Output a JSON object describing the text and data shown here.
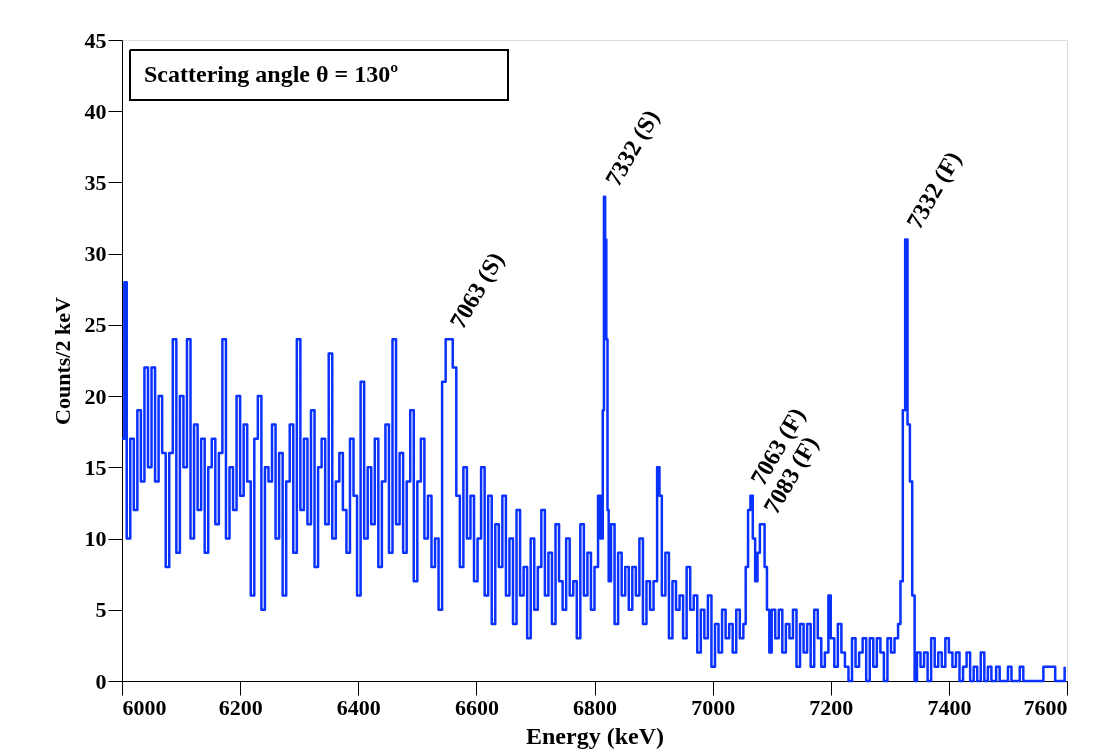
{
  "chart_data": {
    "type": "step",
    "xlabel": "Energy (keV)",
    "ylabel": "Counts/2 keV",
    "xlim": [
      6000,
      7600
    ],
    "ylim": [
      0,
      45
    ],
    "xticks": [
      6000,
      6200,
      6400,
      6600,
      6800,
      7000,
      7200,
      7400,
      7600
    ],
    "yticks": [
      0,
      5,
      10,
      15,
      20,
      25,
      30,
      35,
      40,
      45
    ],
    "grid": false,
    "legend": false,
    "annotations": [
      "Scattering angle θ = 130º",
      {
        "text": "7063 (S)",
        "x": 6555,
        "y": 24
      },
      {
        "text": "7332 (S)",
        "x": 6818,
        "y": 34
      },
      {
        "text": "7063 (F)",
        "x": 7064,
        "y": 13
      },
      {
        "text": "7083 (F)",
        "x": 7086,
        "y": 11
      },
      {
        "text": "7332 (F)",
        "x": 7328,
        "y": 31
      }
    ],
    "series": [
      {
        "color": "#0a32ff",
        "x": [
          6000,
          6004,
          6008,
          6014,
          6020,
          6026,
          6032,
          6038,
          6044,
          6050,
          6056,
          6062,
          6068,
          6074,
          6080,
          6086,
          6092,
          6098,
          6104,
          6110,
          6116,
          6122,
          6128,
          6134,
          6140,
          6146,
          6152,
          6158,
          6164,
          6170,
          6176,
          6182,
          6188,
          6194,
          6200,
          6206,
          6212,
          6218,
          6224,
          6230,
          6236,
          6242,
          6248,
          6254,
          6260,
          6266,
          6272,
          6278,
          6284,
          6290,
          6296,
          6302,
          6308,
          6314,
          6320,
          6326,
          6332,
          6338,
          6344,
          6350,
          6356,
          6362,
          6368,
          6374,
          6380,
          6386,
          6392,
          6398,
          6404,
          6410,
          6416,
          6422,
          6428,
          6434,
          6440,
          6446,
          6452,
          6458,
          6464,
          6470,
          6476,
          6482,
          6488,
          6494,
          6500,
          6506,
          6512,
          6518,
          6524,
          6530,
          6536,
          6542,
          6548,
          6554,
          6560,
          6566,
          6572,
          6578,
          6584,
          6590,
          6596,
          6602,
          6608,
          6614,
          6620,
          6626,
          6632,
          6638,
          6644,
          6650,
          6656,
          6662,
          6668,
          6674,
          6680,
          6686,
          6692,
          6698,
          6704,
          6710,
          6716,
          6722,
          6728,
          6734,
          6740,
          6746,
          6752,
          6758,
          6764,
          6770,
          6776,
          6782,
          6788,
          6794,
          6800,
          6806,
          6810,
          6814,
          6816,
          6818,
          6820,
          6822,
          6824,
          6828,
          6834,
          6840,
          6846,
          6852,
          6858,
          6864,
          6870,
          6876,
          6882,
          6888,
          6894,
          6900,
          6906,
          6910,
          6914,
          6920,
          6926,
          6932,
          6938,
          6944,
          6950,
          6956,
          6962,
          6968,
          6974,
          6980,
          6986,
          6992,
          6998,
          7004,
          7010,
          7016,
          7022,
          7028,
          7034,
          7040,
          7046,
          7052,
          7056,
          7060,
          7064,
          7068,
          7072,
          7076,
          7080,
          7084,
          7088,
          7092,
          7096,
          7100,
          7106,
          7112,
          7118,
          7124,
          7130,
          7136,
          7142,
          7148,
          7154,
          7160,
          7166,
          7172,
          7178,
          7184,
          7190,
          7196,
          7200,
          7206,
          7212,
          7218,
          7224,
          7230,
          7236,
          7242,
          7248,
          7254,
          7260,
          7266,
          7272,
          7278,
          7284,
          7290,
          7296,
          7302,
          7308,
          7314,
          7318,
          7322,
          7326,
          7330,
          7334,
          7338,
          7342,
          7346,
          7352,
          7358,
          7364,
          7370,
          7376,
          7382,
          7388,
          7394,
          7400,
          7406,
          7412,
          7418,
          7424,
          7430,
          7436,
          7442,
          7448,
          7454,
          7460,
          7466,
          7472,
          7480,
          7486,
          7500,
          7506,
          7520,
          7526,
          7560,
          7570,
          7580,
          7596
        ],
        "values": [
          17,
          28,
          10,
          17,
          12,
          19,
          14,
          22,
          15,
          22,
          14,
          20,
          16,
          8,
          16,
          24,
          9,
          20,
          15,
          24,
          10,
          18,
          12,
          17,
          9,
          15,
          17,
          11,
          16,
          24,
          10,
          15,
          12,
          20,
          13,
          18,
          14,
          6,
          17,
          20,
          5,
          15,
          14,
          18,
          10,
          16,
          6,
          14,
          18,
          9,
          24,
          12,
          17,
          11,
          19,
          8,
          15,
          17,
          11,
          23,
          10,
          14,
          16,
          12,
          9,
          17,
          13,
          6,
          21,
          10,
          15,
          11,
          17,
          8,
          14,
          18,
          9,
          24,
          11,
          16,
          9,
          14,
          19,
          7,
          14,
          17,
          10,
          13,
          8,
          10,
          5,
          21,
          24,
          24,
          22,
          13,
          8,
          15,
          10,
          13,
          7,
          10,
          15,
          6,
          13,
          4,
          11,
          8,
          13,
          6,
          10,
          4,
          12,
          6,
          8,
          3,
          10,
          5,
          8,
          12,
          6,
          9,
          4,
          11,
          7,
          5,
          10,
          6,
          7,
          3,
          11,
          6,
          9,
          5,
          8,
          13,
          10,
          19,
          34,
          31,
          24,
          12,
          7,
          11,
          4,
          9,
          6,
          8,
          5,
          8,
          6,
          10,
          4,
          7,
          5,
          7,
          15,
          13,
          6,
          9,
          3,
          7,
          5,
          6,
          3,
          8,
          5,
          6,
          2,
          5,
          3,
          6,
          1,
          4,
          2,
          5,
          3,
          4,
          2,
          5,
          3,
          4,
          8,
          12,
          13,
          10,
          7,
          9,
          11,
          11,
          8,
          5,
          2,
          5,
          3,
          5,
          2,
          4,
          3,
          5,
          1,
          4,
          2,
          4,
          1,
          5,
          3,
          1,
          2,
          6,
          3,
          1,
          4,
          2,
          1,
          0,
          3,
          1,
          2,
          3,
          0,
          3,
          1,
          3,
          2,
          0,
          3,
          2,
          3,
          4,
          7,
          19,
          31,
          18,
          14,
          6,
          0,
          2,
          1,
          2,
          0,
          3,
          1,
          2,
          1,
          3,
          2,
          1,
          2,
          0,
          1,
          2,
          0,
          1,
          0,
          2,
          0,
          1,
          0,
          1,
          0,
          1,
          0,
          1,
          0,
          1,
          1,
          0,
          1
        ]
      }
    ]
  }
}
